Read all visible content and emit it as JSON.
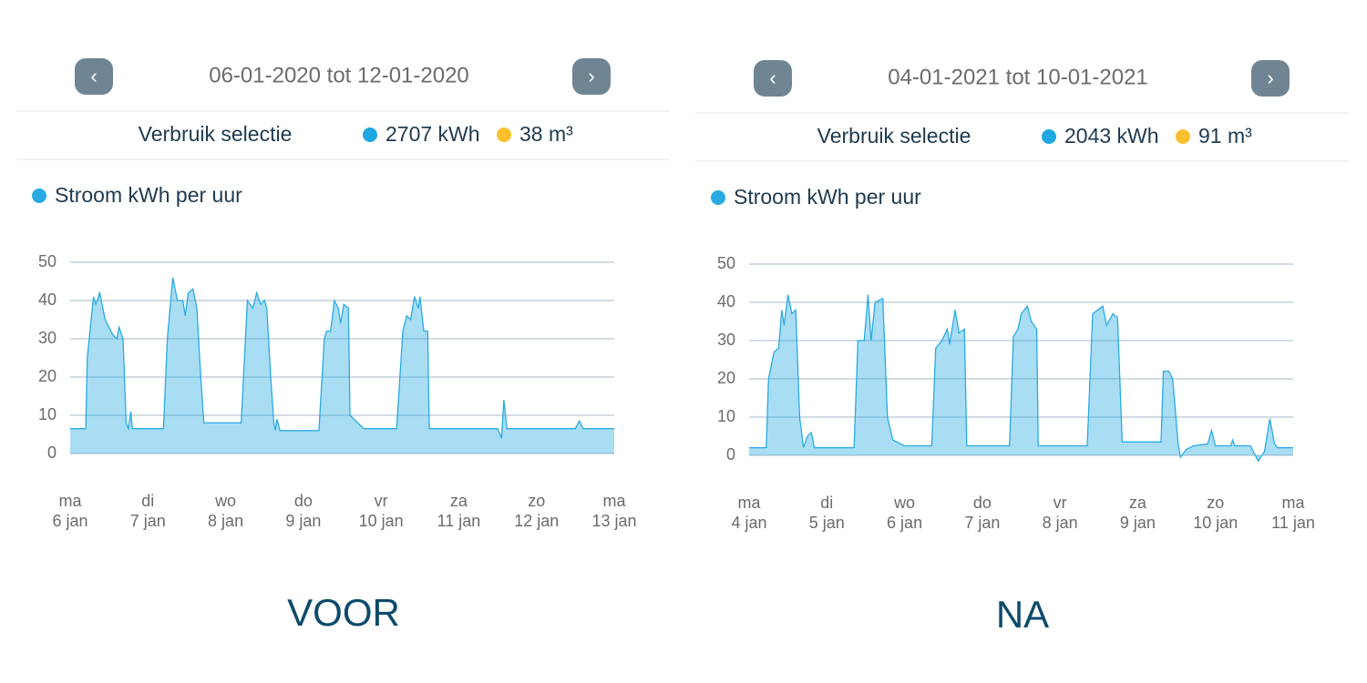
{
  "panels": [
    {
      "nav": {
        "range": "06-01-2020 tot 12-01-2020"
      },
      "summary": {
        "label": "Verbruik selectie",
        "electricity": "2707 kWh",
        "gas": "38 m³"
      },
      "caption": "VOOR"
    },
    {
      "nav": {
        "range": "04-01-2021 tot 10-01-2021"
      },
      "summary": {
        "label": "Verbruik selectie",
        "electricity": "2043 kWh",
        "gas": "91 m³"
      },
      "caption": "NA"
    }
  ],
  "chart_data": [
    {
      "type": "area",
      "grid": true,
      "xlim": [
        0,
        7
      ],
      "ylim": [
        0,
        50
      ],
      "yticks": [
        0,
        10,
        20,
        30,
        40,
        50
      ],
      "xticks": [
        {
          "value": 0,
          "label": "ma 6 jan"
        },
        {
          "value": 1,
          "label": "di 7 jan"
        },
        {
          "value": 2,
          "label": "wo 8 jan"
        },
        {
          "value": 3,
          "label": "do 9 jan"
        },
        {
          "value": 4,
          "label": "vr 10 jan"
        },
        {
          "value": 5,
          "label": "za 11 jan"
        },
        {
          "value": 6,
          "label": "zo 12 jan"
        },
        {
          "value": 7,
          "label": "ma 13 jan"
        }
      ],
      "x": [
        0,
        0.2,
        0.22,
        0.3,
        0.33,
        0.38,
        0.45,
        0.55,
        0.6,
        0.63,
        0.68,
        0.72,
        0.75,
        0.78,
        0.8,
        1.2,
        1.25,
        1.32,
        1.38,
        1.45,
        1.48,
        1.52,
        1.58,
        1.63,
        1.68,
        1.72,
        2.2,
        2.28,
        2.35,
        2.4,
        2.45,
        2.5,
        2.53,
        2.58,
        2.62,
        2.64,
        2.66,
        2.7,
        3.2,
        3.27,
        3.3,
        3.35,
        3.4,
        3.45,
        3.48,
        3.52,
        3.58,
        3.6,
        3.7,
        3.78,
        4.2,
        4.28,
        4.33,
        4.38,
        4.43,
        4.48,
        4.5,
        4.55,
        4.6,
        4.62,
        5.5,
        5.55,
        5.58,
        5.62,
        6.5,
        6.55,
        6.6,
        7
      ],
      "series": [
        {
          "name": "Stroom kWh per uur",
          "color": "#29abe2",
          "values": [
            6.5,
            6.5,
            25,
            41,
            39,
            42,
            35,
            31,
            30,
            33,
            30,
            8,
            6.5,
            11,
            6.5,
            6.5,
            30,
            46,
            40,
            40,
            36,
            42,
            43,
            38,
            20,
            8,
            8,
            40,
            38,
            42,
            39,
            40,
            38,
            20,
            8,
            6,
            9,
            6,
            6,
            30,
            32,
            32,
            40,
            38,
            34,
            39,
            38,
            10,
            8,
            6.5,
            6.5,
            32,
            36,
            35,
            41,
            38,
            41,
            32,
            32,
            6.5,
            6.5,
            4,
            14,
            6.5,
            6.5,
            8.5,
            6.5,
            6.5
          ]
        }
      ]
    },
    {
      "type": "area",
      "grid": true,
      "xlim": [
        0,
        7
      ],
      "ylim": [
        0,
        50
      ],
      "yticks": [
        0,
        10,
        20,
        30,
        40,
        50
      ],
      "xticks": [
        {
          "value": 0,
          "label": "ma 4 jan"
        },
        {
          "value": 1,
          "label": "di 5 jan"
        },
        {
          "value": 2,
          "label": "wo 6 jan"
        },
        {
          "value": 3,
          "label": "do 7 jan"
        },
        {
          "value": 4,
          "label": "vr 8 jan"
        },
        {
          "value": 5,
          "label": "za 9 jan"
        },
        {
          "value": 6,
          "label": "zo 10 jan"
        },
        {
          "value": 7,
          "label": "ma 11 jan"
        }
      ],
      "x": [
        0,
        0.22,
        0.25,
        0.32,
        0.38,
        0.42,
        0.45,
        0.5,
        0.55,
        0.6,
        0.65,
        0.7,
        0.75,
        0.8,
        0.84,
        1.35,
        1.4,
        1.48,
        1.53,
        1.57,
        1.62,
        1.72,
        1.78,
        1.85,
        2.0,
        2.35,
        2.4,
        2.48,
        2.55,
        2.58,
        2.65,
        2.7,
        2.77,
        2.8,
        3.35,
        3.4,
        3.46,
        3.5,
        3.58,
        3.63,
        3.7,
        3.72,
        4.35,
        4.42,
        4.55,
        4.6,
        4.68,
        4.74,
        4.8,
        5.3,
        5.33,
        5.4,
        5.45,
        5.52,
        5.55,
        5.62,
        5.72,
        5.9,
        5.95,
        6.0,
        6.2,
        6.22,
        6.25,
        6.45,
        6.55,
        6.63,
        6.7,
        6.76,
        6.8,
        7
      ],
      "series": [
        {
          "name": "Stroom kWh per uur",
          "color": "#29abe2",
          "values": [
            2,
            2,
            20,
            27,
            28,
            38,
            34,
            42,
            37,
            38,
            10,
            2,
            5,
            6,
            2,
            2,
            30,
            30,
            42,
            30,
            40,
            41,
            10,
            4,
            2.5,
            2.5,
            28,
            30,
            33,
            29,
            38,
            32,
            33,
            2.5,
            2.5,
            31,
            33,
            37,
            39,
            35,
            33,
            2.5,
            2.5,
            37,
            39,
            34,
            37,
            36,
            3.5,
            3.5,
            22,
            22,
            20,
            3,
            -0.5,
            1.5,
            2.5,
            3,
            6.5,
            2.5,
            2.5,
            4,
            2.5,
            2.5,
            -1.5,
            1,
            9.5,
            3,
            2,
            2
          ]
        }
      ]
    }
  ]
}
